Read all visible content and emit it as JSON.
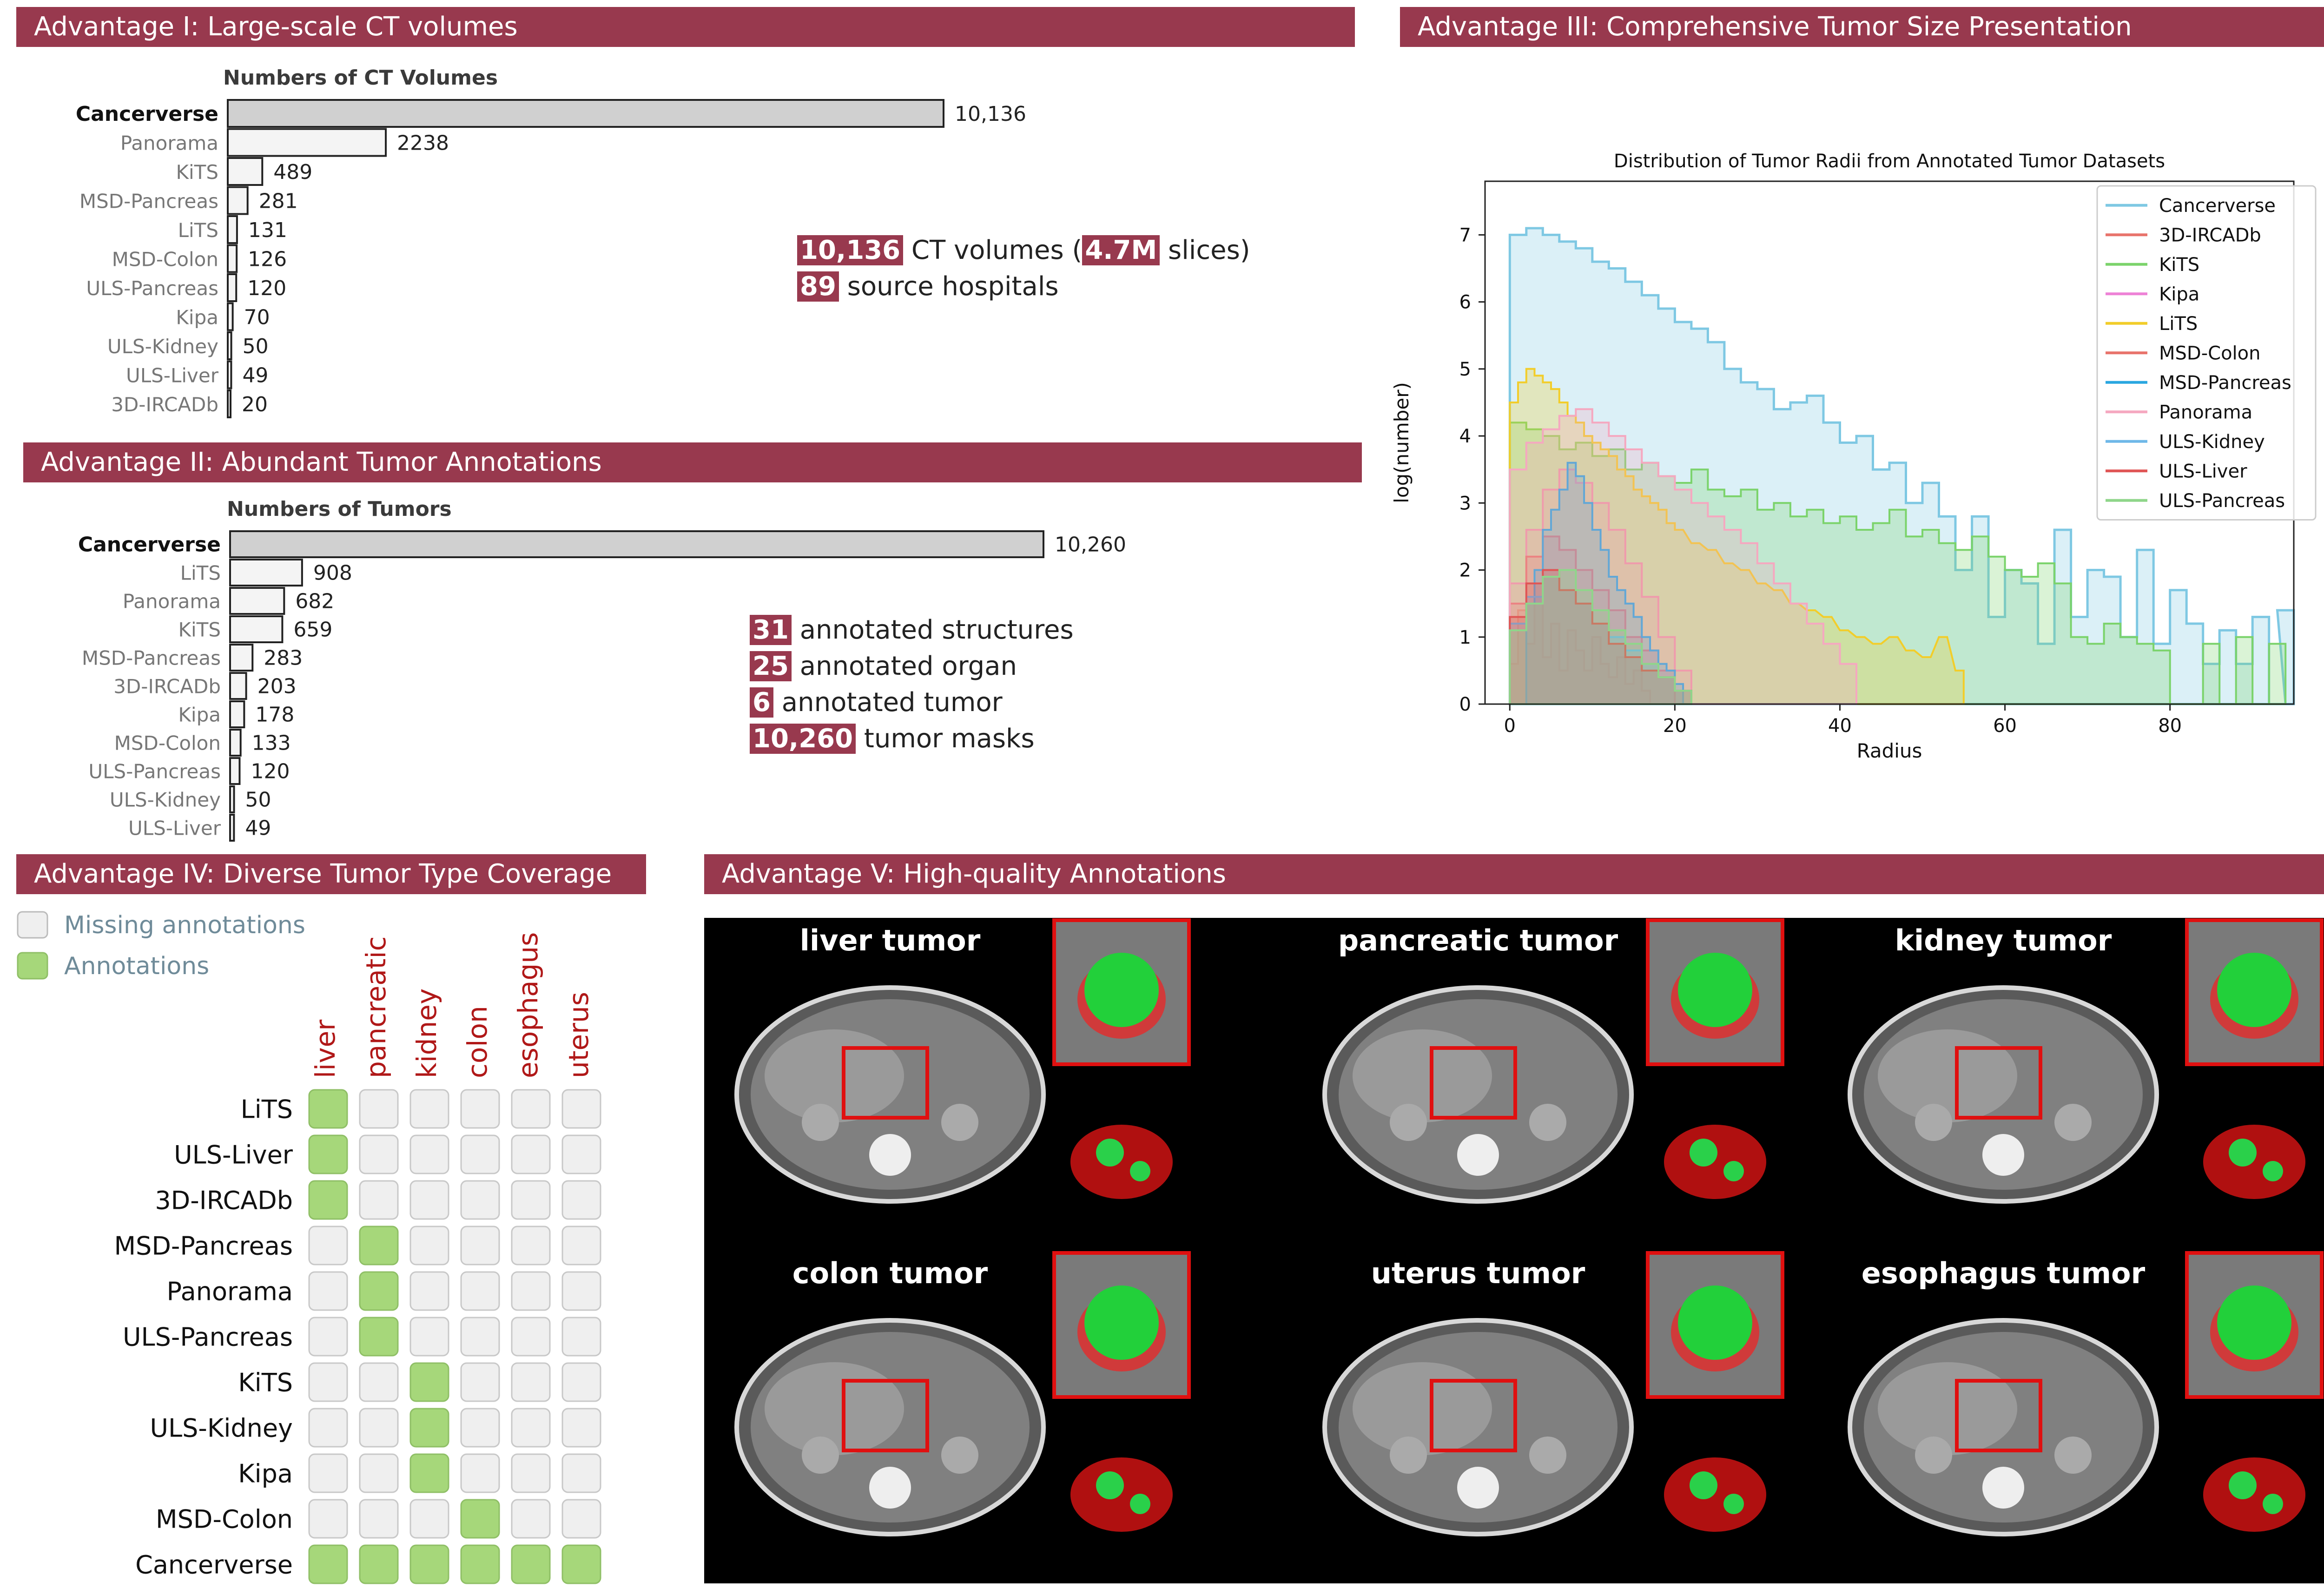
{
  "sections": {
    "adv1": "Advantage I: Large-scale CT volumes",
    "adv2": "Advantage II: Abundant Tumor Annotations",
    "adv3": "Advantage III: Comprehensive Tumor Size Presentation",
    "adv4": "Advantage IV: Diverse Tumor Type Coverage",
    "adv5": "Advantage V: High-quality Annotations"
  },
  "stats_ct": [
    {
      "value": "10,136",
      "text": " CT volumes (",
      "value2": "4.7M",
      "text2": " slices)"
    },
    {
      "value": "89",
      "text": " source hospitals"
    }
  ],
  "stats_tumor": [
    {
      "value": "31",
      "text": " annotated structures"
    },
    {
      "value": "25",
      "text": " annotated organ"
    },
    {
      "value": "6",
      "text": " annotated tumor"
    },
    {
      "value": "10,260",
      "text": " tumor masks"
    }
  ],
  "legend_iv": {
    "missing": "Missing annotations",
    "present": "Annotations"
  },
  "tumor_types": [
    "liver",
    "pancreatic",
    "kidney",
    "colon",
    "esophagus",
    "uterus"
  ],
  "coverage": [
    {
      "dataset": "LiTS",
      "cells": [
        1,
        0,
        0,
        0,
        0,
        0
      ]
    },
    {
      "dataset": "ULS-Liver",
      "cells": [
        1,
        0,
        0,
        0,
        0,
        0
      ]
    },
    {
      "dataset": "3D-IRCADb",
      "cells": [
        1,
        0,
        0,
        0,
        0,
        0
      ]
    },
    {
      "dataset": "MSD-Pancreas",
      "cells": [
        0,
        1,
        0,
        0,
        0,
        0
      ]
    },
    {
      "dataset": "Panorama",
      "cells": [
        0,
        1,
        0,
        0,
        0,
        0
      ]
    },
    {
      "dataset": "ULS-Pancreas",
      "cells": [
        0,
        1,
        0,
        0,
        0,
        0
      ]
    },
    {
      "dataset": "KiTS",
      "cells": [
        0,
        0,
        1,
        0,
        0,
        0
      ]
    },
    {
      "dataset": "ULS-Kidney",
      "cells": [
        0,
        0,
        1,
        0,
        0,
        0
      ]
    },
    {
      "dataset": "Kipa",
      "cells": [
        0,
        0,
        1,
        0,
        0,
        0
      ]
    },
    {
      "dataset": "MSD-Colon",
      "cells": [
        0,
        0,
        0,
        1,
        0,
        0
      ]
    },
    {
      "dataset": "Cancerverse",
      "cells": [
        1,
        1,
        1,
        1,
        1,
        1
      ]
    }
  ],
  "ct_labels": [
    "liver tumor",
    "pancreatic tumor",
    "kidney tumor",
    "colon tumor",
    "uterus tumor",
    "esophagus tumor"
  ],
  "colors": {
    "banner": "#98394e",
    "annotation_green": "#a6d77a",
    "missing_gray": "#efefef",
    "type_red": "#b01818"
  },
  "chart_data": [
    {
      "type": "bar",
      "orientation": "horizontal",
      "title": "Numbers of CT Volumes",
      "categories": [
        "Cancerverse",
        "Panorama",
        "KiTS",
        "MSD-Pancreas",
        "LiTS",
        "MSD-Colon",
        "ULS-Pancreas",
        "Kipa",
        "ULS-Kidney",
        "ULS-Liver",
        "3D-IRCADb"
      ],
      "values": [
        10136,
        2238,
        489,
        281,
        131,
        126,
        120,
        70,
        50,
        49,
        20
      ],
      "value_labels": [
        "10,136",
        "2238",
        "489",
        "281",
        "131",
        "126",
        "120",
        "70",
        "50",
        "49",
        "20"
      ]
    },
    {
      "type": "bar",
      "orientation": "horizontal",
      "title": "Numbers of Tumors",
      "categories": [
        "Cancerverse",
        "LiTS",
        "Panorama",
        "KiTS",
        "MSD-Pancreas",
        "3D-IRCADb",
        "Kipa",
        "MSD-Colon",
        "ULS-Pancreas",
        "ULS-Kidney",
        "ULS-Liver"
      ],
      "values": [
        10260,
        908,
        682,
        659,
        283,
        203,
        178,
        133,
        120,
        50,
        49
      ],
      "value_labels": [
        "10,260",
        "908",
        "682",
        "659",
        "283",
        "203",
        "178",
        "133",
        "120",
        "50",
        "49"
      ]
    },
    {
      "type": "area",
      "title": "Distribution of Tumor Radii from Annotated Tumor Datasets",
      "xlabel": "Radius",
      "ylabel": "log(number)",
      "xlim": [
        -3,
        95
      ],
      "ylim": [
        0,
        7.8
      ],
      "xticks": [
        0,
        20,
        40,
        60,
        80
      ],
      "yticks": [
        0,
        1,
        2,
        3,
        4,
        5,
        6,
        7
      ],
      "legend_position": "top-right",
      "series": [
        {
          "name": "Cancerverse",
          "color": "#7ec8e3",
          "x": [
            0,
            2,
            4,
            6,
            8,
            10,
            12,
            14,
            16,
            18,
            20,
            22,
            24,
            26,
            28,
            30,
            32,
            34,
            36,
            38,
            40,
            42,
            44,
            46,
            48,
            50,
            52,
            54,
            56,
            58,
            60,
            62,
            64,
            66,
            68,
            70,
            72,
            74,
            76,
            78,
            80,
            82,
            84,
            86,
            88,
            90,
            92,
            93
          ],
          "y": [
            7.0,
            7.1,
            7.0,
            6.9,
            6.8,
            6.6,
            6.5,
            6.3,
            6.1,
            5.9,
            5.7,
            5.6,
            5.4,
            5.0,
            4.8,
            4.7,
            4.4,
            4.5,
            4.6,
            4.2,
            3.9,
            4.0,
            3.5,
            3.6,
            3.0,
            3.3,
            2.8,
            2.0,
            2.8,
            1.3,
            2.0,
            1.8,
            0.9,
            2.6,
            1.3,
            2.0,
            1.9,
            1.0,
            2.3,
            0.9,
            1.7,
            1.2,
            0.6,
            1.1,
            0.6,
            1.3,
            0.0,
            1.4
          ]
        },
        {
          "name": "3D-IRCADb",
          "color": "#e8736b",
          "x": [
            0,
            1,
            2,
            3,
            4,
            5,
            6,
            7,
            8,
            9,
            10,
            11,
            12,
            13,
            14,
            15,
            16
          ],
          "y": [
            0.6,
            1.4,
            0.9,
            1.6,
            0.7,
            1.2,
            0.5,
            1.1,
            0.8,
            0.5,
            1.0,
            0.6,
            0.4,
            0.7,
            0.3,
            0.5,
            0.2
          ]
        },
        {
          "name": "KiTS",
          "color": "#7bd36b",
          "x": [
            0,
            2,
            4,
            6,
            8,
            10,
            12,
            14,
            16,
            18,
            20,
            22,
            24,
            26,
            28,
            30,
            32,
            34,
            36,
            38,
            40,
            42,
            44,
            46,
            48,
            50,
            52,
            54,
            56,
            58,
            60,
            62,
            64,
            66,
            68,
            70,
            72,
            74,
            76,
            78,
            80,
            82,
            84,
            86,
            88,
            90,
            92
          ],
          "y": [
            4.2,
            4.1,
            4.0,
            3.8,
            3.9,
            3.7,
            3.8,
            3.5,
            3.6,
            3.4,
            3.3,
            3.5,
            3.2,
            3.1,
            3.2,
            2.9,
            3.0,
            2.8,
            2.9,
            2.7,
            2.8,
            2.6,
            2.7,
            2.9,
            2.5,
            2.6,
            2.4,
            2.3,
            2.5,
            2.2,
            2.0,
            1.9,
            2.1,
            1.8,
            1.0,
            0.9,
            1.2,
            1.0,
            0.9,
            0.8,
            0.0,
            0.0,
            0.9,
            0.0,
            1.0,
            0.0,
            0.9
          ]
        },
        {
          "name": "Kipa",
          "color": "#ee82d6",
          "x": [
            0,
            2,
            4,
            6,
            8,
            10,
            12,
            14,
            16,
            18,
            20
          ],
          "y": [
            1.8,
            2.6,
            3.2,
            3.5,
            3.3,
            3.0,
            2.6,
            2.1,
            1.6,
            1.0,
            0.5
          ]
        },
        {
          "name": "LiTS",
          "color": "#f2cd2a",
          "x": [
            0,
            1,
            2,
            3,
            4,
            5,
            6,
            7,
            8,
            9,
            10,
            11,
            12,
            13,
            14,
            15,
            16,
            17,
            18,
            19,
            20,
            22,
            24,
            26,
            28,
            30,
            32,
            34,
            36,
            38,
            40,
            42,
            44,
            46,
            48,
            50,
            52,
            54
          ],
          "y": [
            4.5,
            4.8,
            5.0,
            4.9,
            4.8,
            4.7,
            4.5,
            4.3,
            4.2,
            4.0,
            3.9,
            3.8,
            3.7,
            3.5,
            3.4,
            3.2,
            3.1,
            3.0,
            2.9,
            2.7,
            2.6,
            2.4,
            2.3,
            2.1,
            2.0,
            1.8,
            1.7,
            1.5,
            1.4,
            1.3,
            1.1,
            1.0,
            0.9,
            1.0,
            0.8,
            0.7,
            1.0,
            0.5
          ]
        },
        {
          "name": "MSD-Colon",
          "color": "#e8736b",
          "x": [
            0,
            2,
            4,
            6,
            8,
            10,
            12,
            14,
            16,
            18
          ],
          "y": [
            1.5,
            2.2,
            2.5,
            2.3,
            2.0,
            1.7,
            1.4,
            1.0,
            0.8,
            0.5
          ]
        },
        {
          "name": "MSD-Pancreas",
          "color": "#2aa7e0",
          "x": [
            2,
            3,
            4,
            5,
            6,
            7,
            8,
            9,
            10,
            11,
            12,
            13,
            14,
            15,
            16,
            17,
            18,
            19,
            20
          ],
          "y": [
            1.5,
            2.0,
            2.6,
            2.9,
            3.2,
            3.6,
            3.4,
            3.0,
            2.6,
            2.3,
            1.9,
            1.7,
            1.5,
            1.3,
            1.0,
            0.8,
            0.6,
            0.5,
            0.3
          ]
        },
        {
          "name": "Panorama",
          "color": "#f5a8c0",
          "x": [
            0,
            2,
            4,
            6,
            8,
            10,
            12,
            14,
            16,
            18,
            20,
            22,
            24,
            26,
            28,
            30,
            32,
            34,
            36,
            38,
            40
          ],
          "y": [
            3.5,
            3.9,
            4.1,
            4.3,
            4.4,
            4.2,
            4.0,
            3.8,
            3.6,
            3.4,
            3.2,
            3.0,
            2.8,
            2.6,
            2.4,
            2.1,
            1.8,
            1.5,
            1.2,
            0.9,
            0.6
          ]
        },
        {
          "name": "ULS-Kidney",
          "color": "#6fb8e8",
          "x": [
            0,
            2,
            4,
            6,
            8,
            10,
            12,
            14,
            16,
            18,
            20
          ],
          "y": [
            1.2,
            1.6,
            1.9,
            1.7,
            1.5,
            1.2,
            1.0,
            0.8,
            0.6,
            0.4,
            0.2
          ]
        },
        {
          "name": "ULS-Liver",
          "color": "#e05555",
          "x": [
            0,
            2,
            4,
            6,
            8,
            10,
            12,
            14,
            16,
            18,
            20
          ],
          "y": [
            1.3,
            1.8,
            2.0,
            1.7,
            1.5,
            1.2,
            0.9,
            0.7,
            0.5,
            0.4,
            0.2
          ]
        },
        {
          "name": "ULS-Pancreas",
          "color": "#8fd68a",
          "x": [
            0,
            2,
            4,
            6,
            8,
            10,
            12,
            14,
            16,
            18,
            20
          ],
          "y": [
            1.1,
            1.5,
            1.9,
            2.0,
            1.7,
            1.4,
            1.1,
            0.9,
            0.6,
            0.4,
            0.2
          ]
        }
      ]
    }
  ]
}
